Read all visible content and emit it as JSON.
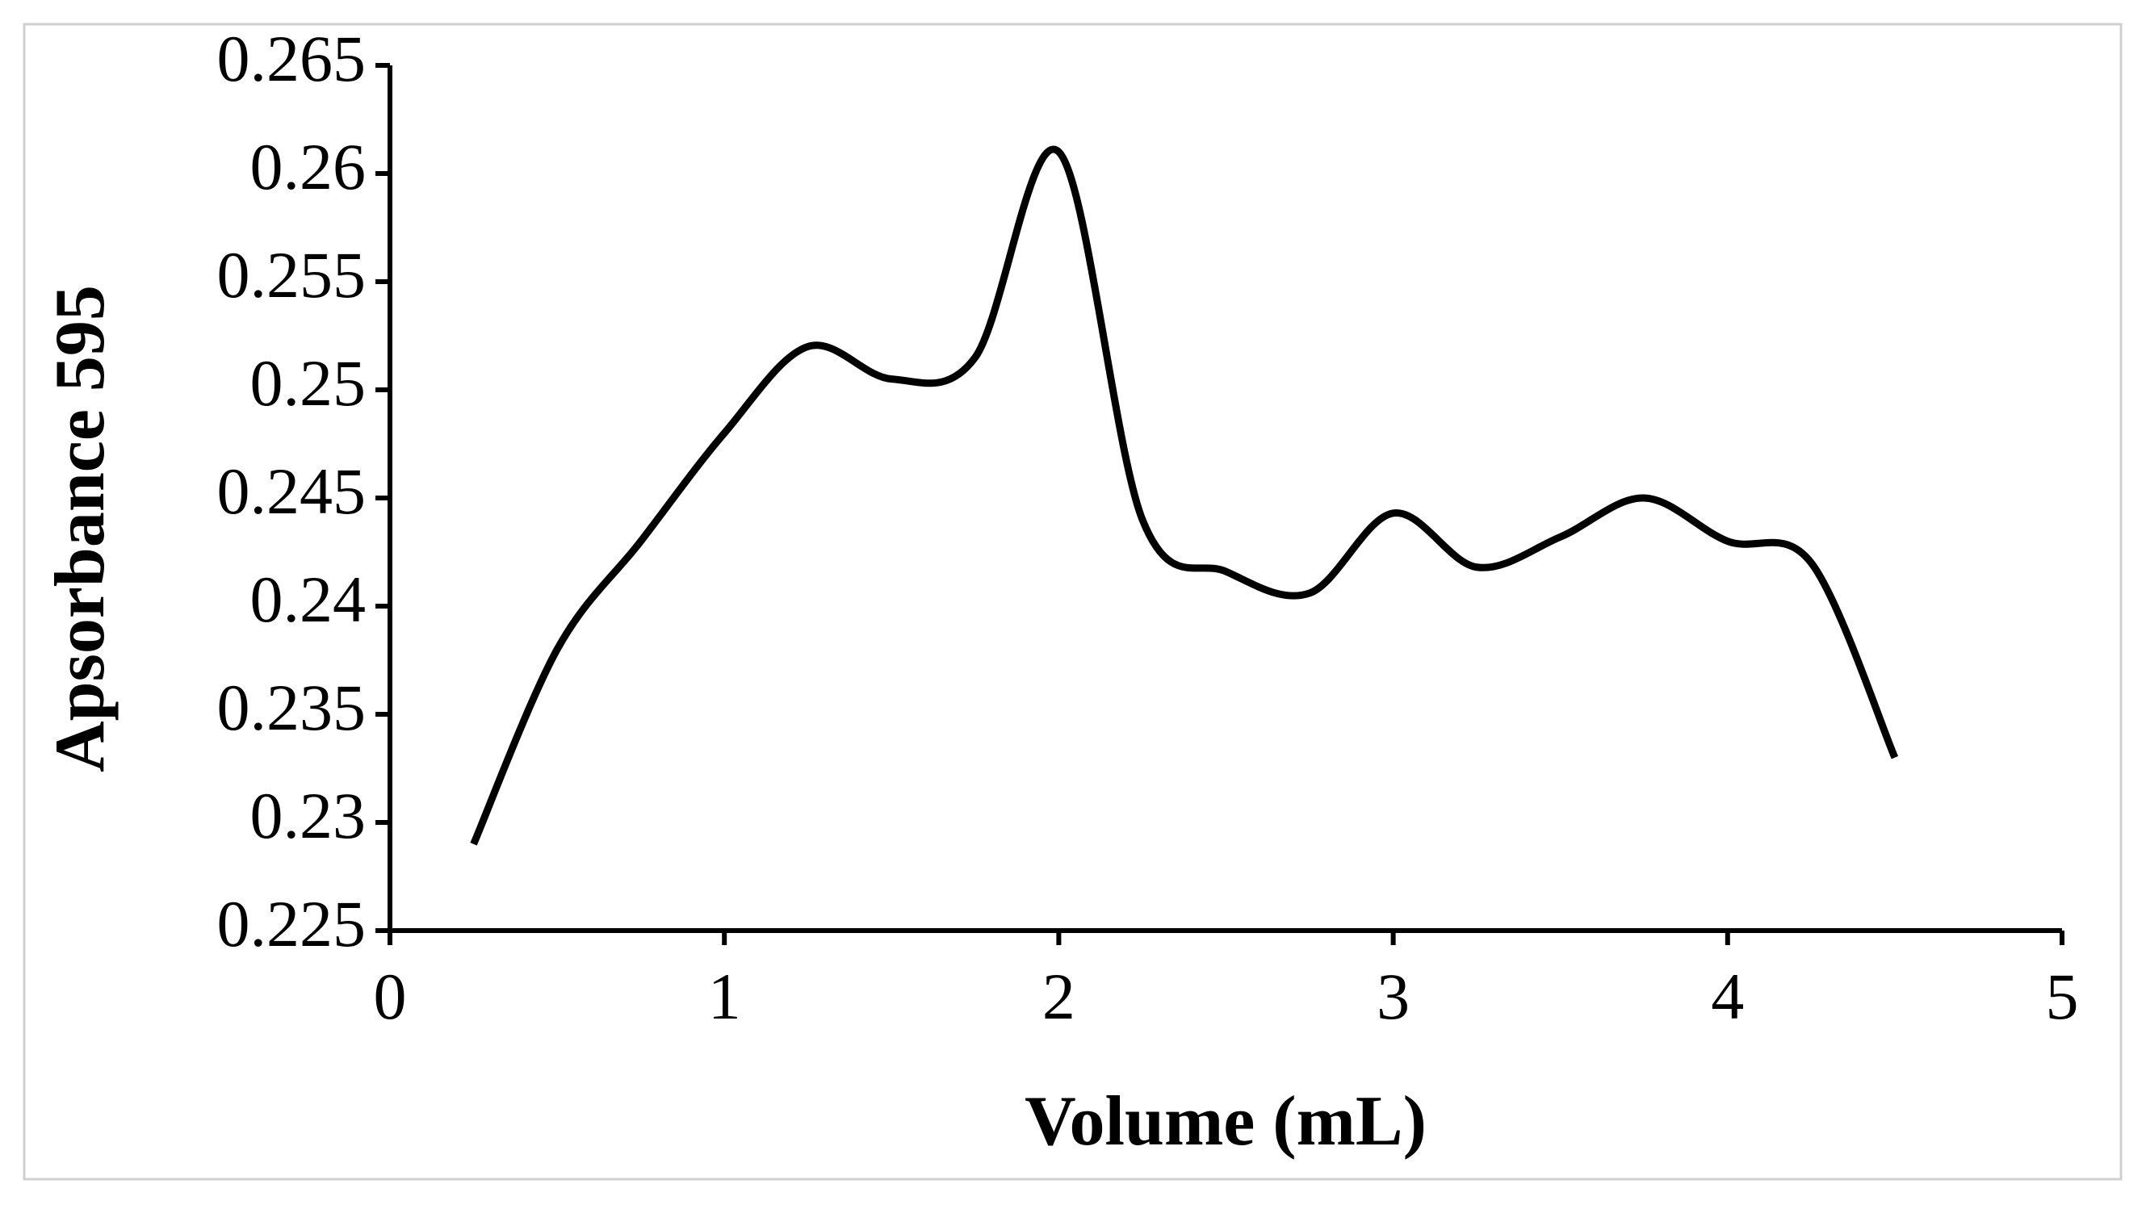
{
  "chart_data": {
    "type": "line",
    "x_label": "Volume (mL)",
    "y_label": "Apsorbance 595",
    "x": [
      0.25,
      0.5,
      0.75,
      1.0,
      1.25,
      1.5,
      1.75,
      2.0,
      2.25,
      2.5,
      2.75,
      3.0,
      3.25,
      3.5,
      3.75,
      4.0,
      4.25,
      4.5
    ],
    "series": [
      {
        "color": "#000000",
        "values": [
          0.229,
          0.238,
          0.243,
          0.248,
          0.252,
          0.2505,
          0.2515,
          0.261,
          0.244,
          0.2416,
          0.2406,
          0.2443,
          0.2418,
          0.2432,
          0.245,
          0.243,
          0.242,
          0.233
        ]
      }
    ],
    "xlim": [
      0,
      5
    ],
    "xticks": [
      0,
      1,
      2,
      3,
      4,
      5
    ],
    "ylim": [
      0.225,
      0.265
    ],
    "yticks": [
      0.225,
      0.23,
      0.235,
      0.24,
      0.245,
      0.25,
      0.255,
      0.26,
      0.265
    ],
    "smooth": true
  }
}
